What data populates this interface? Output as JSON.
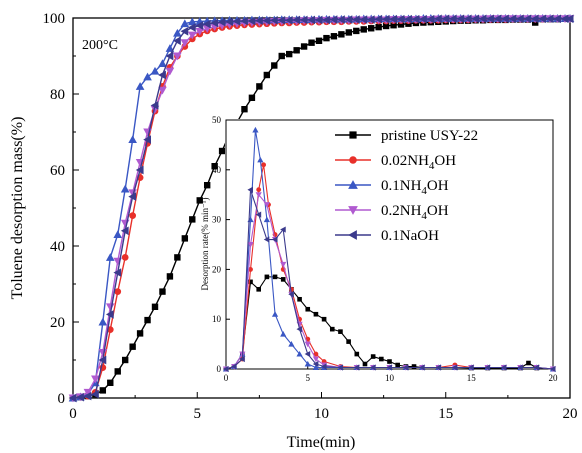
{
  "chart_data": [
    {
      "type": "line",
      "title": "",
      "annotation": "200°C",
      "xlabel": "Time(min)",
      "ylabel": "Toluene desorption mass(%)",
      "xlim": [
        0,
        20
      ],
      "ylim": [
        0,
        100
      ],
      "xticks": [
        "0",
        "5",
        "10",
        "15",
        "20"
      ],
      "yticks": [
        "0",
        "20",
        "40",
        "60",
        "80",
        "100"
      ],
      "legend_position": "inside-right",
      "series": [
        {
          "name": "pristine USY-22",
          "color": "#000000",
          "marker": "square",
          "x": [
            0,
            0.3,
            0.6,
            0.9,
            1.2,
            1.5,
            1.8,
            2.1,
            2.4,
            2.7,
            3.0,
            3.3,
            3.6,
            3.9,
            4.2,
            4.5,
            4.8,
            5.1,
            5.4,
            5.7,
            6.0,
            6.3,
            6.6,
            6.9,
            7.2,
            7.5,
            7.8,
            8.1,
            8.4,
            8.7,
            9.0,
            9.3,
            9.6,
            9.9,
            10.2,
            10.5,
            10.8,
            11.1,
            11.4,
            11.7,
            12.0,
            12.3,
            12.6,
            12.9,
            13.2,
            13.5,
            13.8,
            14.1,
            14.4,
            14.7,
            15.0,
            15.3,
            15.6,
            15.9,
            16.2,
            16.5,
            16.8,
            17.1,
            17.4,
            17.7,
            18.0,
            18.3,
            18.6,
            18.9,
            19.2,
            19.5,
            19.8,
            20.0
          ],
          "y": [
            0,
            0.2,
            0.5,
            1,
            2,
            4,
            7,
            10,
            13.5,
            17,
            20.5,
            24,
            28,
            32,
            37,
            42,
            47,
            52,
            56,
            61,
            65,
            69.5,
            72.5,
            76,
            79,
            82,
            85,
            87.5,
            90,
            90.5,
            91.5,
            92.5,
            93.5,
            94,
            94.7,
            95.2,
            95.7,
            96.2,
            96.6,
            97,
            97.3,
            97.6,
            97.9,
            98.1,
            98.3,
            98.5,
            98.7,
            98.8,
            98.9,
            99,
            99.1,
            99.2,
            99.3,
            99.3,
            99.4,
            99.4,
            99.5,
            99.5,
            99.5,
            99.6,
            99.6,
            99.6,
            98.8,
            99.7,
            99.7,
            99.7,
            99.8,
            99.8
          ]
        },
        {
          "name": "0.02NH4OH",
          "color": "#e8302a",
          "marker": "circle",
          "x": [
            0,
            0.3,
            0.6,
            0.9,
            1.2,
            1.5,
            1.8,
            2.1,
            2.4,
            2.7,
            3.0,
            3.3,
            3.6,
            3.9,
            4.2,
            4.5,
            4.8,
            5.1,
            5.4,
            5.7,
            6.0,
            6.3,
            6.6,
            6.9,
            7.2,
            7.5,
            7.8,
            8.1,
            8.4,
            8.7,
            9.0,
            9.3,
            9.6,
            9.9,
            10.2,
            10.5,
            10.8,
            11.1,
            11.4,
            11.7,
            12.0,
            12.3,
            12.6,
            12.9,
            13.2,
            13.5,
            13.8,
            14.1,
            14.4,
            14.7,
            15.0,
            15.3,
            15.6,
            15.9,
            16.2,
            16.5,
            16.8,
            17.1,
            17.4,
            17.7,
            18.0,
            18.3,
            18.6,
            18.9,
            19.2,
            19.5,
            19.8,
            20.0
          ],
          "y": [
            0,
            0.2,
            0.5,
            1.5,
            8,
            18,
            28,
            37,
            48,
            58,
            67,
            75.5,
            82,
            87,
            90,
            92.5,
            94.5,
            95.8,
            96.6,
            97.1,
            97.5,
            97.8,
            98,
            98.2,
            98.3,
            98.4,
            98.5,
            98.6,
            98.7,
            98.7,
            98.8,
            98.8,
            98.9,
            98.9,
            99,
            99,
            99,
            99.1,
            99.1,
            99.1,
            99.2,
            99.2,
            99.2,
            99.3,
            99.3,
            99.3,
            99.4,
            99.4,
            99.4,
            99.4,
            99.5,
            99.5,
            99.5,
            99.5,
            99.6,
            99.6,
            99.6,
            99.6,
            99.6,
            99.7,
            99.7,
            99.7,
            99.7,
            99.7,
            99.8,
            99.8,
            99.8,
            99.8
          ]
        },
        {
          "name": "0.1NH4OH",
          "color": "#3a57c4",
          "marker": "triangle-up",
          "x": [
            0,
            0.3,
            0.6,
            0.9,
            1.2,
            1.5,
            1.8,
            2.1,
            2.4,
            2.7,
            3.0,
            3.3,
            3.6,
            3.9,
            4.2,
            4.5,
            4.8,
            5.1,
            5.4,
            5.7,
            6.0,
            6.3,
            6.6,
            6.9,
            7.2,
            7.5,
            7.8,
            8.1,
            8.4,
            8.7,
            9.0,
            9.3,
            9.6,
            9.9,
            10.2,
            10.5,
            10.8,
            11.1,
            11.4,
            11.7,
            12.0,
            12.3,
            12.6,
            12.9,
            13.2,
            13.5,
            13.8,
            14.1,
            14.4,
            14.7,
            15.0,
            15.3,
            15.6,
            15.9,
            16.2,
            16.5,
            16.8,
            17.1,
            17.4,
            17.7,
            18.0,
            18.3,
            18.6,
            18.9,
            19.2,
            19.5,
            19.8,
            20.0
          ],
          "y": [
            0,
            0.3,
            1,
            4,
            20,
            37,
            43,
            55,
            68,
            82,
            84.5,
            86,
            88,
            92,
            96,
            98.5,
            99,
            99.1,
            99.2,
            99.3,
            99.3,
            99.4,
            99.4,
            99.4,
            99.5,
            99.5,
            99.5,
            99.5,
            99.6,
            99.6,
            99.6,
            99.6,
            99.6,
            99.7,
            99.7,
            99.7,
            99.7,
            99.7,
            99.7,
            99.8,
            99.8,
            99.8,
            99.8,
            99.8,
            99.8,
            99.8,
            99.8,
            99.9,
            99.9,
            99.9,
            99.9,
            99.9,
            99.9,
            99.9,
            99.9,
            99.9,
            99.9,
            99.9,
            99.9,
            99.9,
            99.9,
            99.9,
            99.9,
            99.9,
            99.9,
            99.9,
            99.9,
            99.9
          ]
        },
        {
          "name": "0.2NH4OH",
          "color": "#b05ad0",
          "marker": "triangle-down",
          "x": [
            0,
            0.3,
            0.6,
            0.9,
            1.2,
            1.5,
            1.8,
            2.1,
            2.4,
            2.7,
            3.0,
            3.3,
            3.6,
            3.9,
            4.2,
            4.5,
            4.8,
            5.1,
            5.4,
            5.7,
            6.0,
            6.3,
            6.6,
            6.9,
            7.2,
            7.5,
            7.8,
            8.1,
            8.4,
            8.7,
            9.0,
            9.3,
            9.6,
            9.9,
            10.2,
            10.5,
            10.8,
            11.1,
            11.4,
            11.7,
            12.0,
            12.3,
            12.6,
            12.9,
            13.2,
            13.5,
            13.8,
            14.1,
            14.4,
            14.7,
            15.0,
            15.3,
            15.6,
            15.9,
            16.2,
            16.5,
            16.8,
            17.1,
            17.4,
            17.7,
            18.0,
            18.3,
            18.6,
            18.9,
            19.2,
            19.5,
            19.8,
            20.0
          ],
          "y": [
            0,
            0.3,
            1.5,
            5,
            12,
            24,
            36,
            46,
            54,
            62,
            70,
            76,
            81,
            86,
            90,
            93.5,
            95.5,
            96.5,
            97.2,
            97.7,
            98,
            98.3,
            98.5,
            98.7,
            98.8,
            98.9,
            99,
            99.1,
            99.1,
            99.2,
            99.2,
            99.3,
            99.3,
            99.3,
            99.4,
            99.4,
            99.4,
            99.4,
            99.5,
            99.5,
            99.5,
            99.5,
            99.5,
            99.6,
            99.6,
            99.6,
            99.6,
            99.6,
            99.6,
            99.7,
            99.7,
            99.7,
            99.7,
            99.7,
            99.7,
            99.7,
            99.8,
            99.8,
            99.8,
            99.8,
            99.8,
            99.8,
            99.8,
            99.8,
            99.8,
            99.8,
            99.8,
            99.8
          ]
        },
        {
          "name": "0.1NaOH",
          "color": "#3b3a8c",
          "marker": "triangle-left",
          "x": [
            0,
            0.3,
            0.6,
            0.9,
            1.2,
            1.5,
            1.8,
            2.1,
            2.4,
            2.7,
            3.0,
            3.3,
            3.6,
            3.9,
            4.2,
            4.5,
            4.8,
            5.1,
            5.4,
            5.7,
            6.0,
            6.3,
            6.6,
            6.9,
            7.2,
            7.5,
            7.8,
            8.1,
            8.4,
            8.7,
            9.0,
            9.3,
            9.6,
            9.9,
            10.2,
            10.5,
            10.8,
            11.1,
            11.4,
            11.7,
            12.0,
            12.3,
            12.6,
            12.9,
            13.2,
            13.5,
            13.8,
            14.1,
            14.4,
            14.7,
            15.0,
            15.3,
            15.6,
            15.9,
            16.2,
            16.5,
            16.8,
            17.1,
            17.4,
            17.7,
            18.0,
            18.3,
            18.6,
            18.9,
            19.2,
            19.5,
            19.8,
            20.0
          ],
          "y": [
            0,
            0.2,
            0.5,
            1,
            10,
            22,
            33,
            44,
            53,
            60,
            68,
            77,
            85,
            90,
            94,
            96.5,
            97.5,
            98,
            98.4,
            98.7,
            98.9,
            99,
            99.1,
            99.2,
            99.2,
            99.3,
            99.3,
            99.4,
            99.4,
            99.4,
            99.5,
            99.5,
            99.5,
            99.5,
            99.5,
            99.6,
            99.6,
            99.6,
            99.6,
            99.6,
            99.6,
            99.7,
            99.7,
            99.7,
            99.7,
            99.7,
            99.7,
            99.7,
            99.7,
            99.8,
            99.8,
            99.8,
            99.8,
            99.8,
            99.8,
            99.8,
            99.8,
            99.8,
            99.8,
            99.8,
            99.8,
            99.8,
            99.8,
            99.8,
            99.8,
            99.8,
            99.8,
            99.8
          ]
        }
      ]
    },
    {
      "type": "line",
      "title": "",
      "xlabel": "",
      "ylabel": "Desorption rate(% min⁻¹)",
      "xlim": [
        0,
        20
      ],
      "ylim": [
        0,
        50
      ],
      "xticks": [
        "0",
        "5",
        "10",
        "15",
        "20"
      ],
      "yticks": [
        "0",
        "10",
        "20",
        "30",
        "40",
        "50"
      ],
      "series": [
        {
          "name": "pristine USY-22",
          "color": "#000000",
          "marker": "square",
          "x": [
            0,
            0.5,
            1.0,
            1.5,
            2.0,
            2.5,
            3.0,
            3.5,
            4.0,
            4.5,
            5.0,
            5.5,
            6.0,
            6.5,
            7.0,
            7.5,
            8.0,
            8.5,
            9.0,
            9.5,
            10.0,
            10.5,
            11.0,
            11.5,
            12.0,
            13.0,
            14.0,
            15.0,
            16.0,
            17.0,
            18.0,
            18.5,
            19.0,
            20.0
          ],
          "y": [
            0,
            0.5,
            3,
            17.5,
            16,
            18.5,
            18.5,
            18,
            16,
            14,
            12,
            11,
            10,
            8,
            7.5,
            5.5,
            3,
            1,
            2.5,
            2,
            1.5,
            0.8,
            0.5,
            0.5,
            0.3,
            0.3,
            0.3,
            0.2,
            0.2,
            0.2,
            0.2,
            1.2,
            0.2,
            0
          ]
        },
        {
          "name": "0.02NH4OH",
          "color": "#e8302a",
          "marker": "circle",
          "x": [
            0,
            0.5,
            1.0,
            1.5,
            2.0,
            2.3,
            2.6,
            3.0,
            3.5,
            4.0,
            4.5,
            5.0,
            5.5,
            6.0,
            7.0,
            8.0,
            9.0,
            10.0,
            11.0,
            12.0,
            13.0,
            14.0,
            15.0,
            16.0,
            17.0,
            18.0,
            19.0,
            20.0
          ],
          "y": [
            0,
            0.5,
            2,
            20,
            36,
            41,
            33,
            27,
            20,
            16,
            10,
            6,
            3,
            1.5,
            0.5,
            0.3,
            0.3,
            0.3,
            0.3,
            0.3,
            0.3,
            0.8,
            0.3,
            0.3,
            0.3,
            0.3,
            0.3,
            0
          ]
        },
        {
          "name": "0.1NH4OH",
          "color": "#3a57c4",
          "marker": "triangle-up",
          "x": [
            0,
            0.5,
            1.0,
            1.5,
            1.8,
            2.1,
            2.5,
            3.0,
            3.5,
            4.0,
            4.5,
            5.0,
            5.5,
            6.0,
            7.0,
            8.0,
            9.0,
            10.0,
            11.0,
            12.0,
            13.0,
            14.0,
            15.0,
            16.0,
            17.0,
            18.0,
            19.0,
            20.0
          ],
          "y": [
            0,
            0.5,
            3,
            30,
            48,
            42,
            30,
            11,
            7,
            5,
            3,
            1,
            0.3,
            0.3,
            0.3,
            0.3,
            0.3,
            0.3,
            0.3,
            0.3,
            0.3,
            0.3,
            0.3,
            0.3,
            0.3,
            0.3,
            0.3,
            0
          ]
        },
        {
          "name": "0.2NH4OH",
          "color": "#b05ad0",
          "marker": "triangle-down",
          "x": [
            0,
            0.5,
            1.0,
            1.5,
            2.0,
            2.5,
            3.0,
            3.5,
            4.0,
            4.5,
            5.0,
            5.5,
            6.0,
            7.0,
            8.0,
            9.0,
            10.0,
            11.0,
            12.0,
            13.0,
            14.0,
            15.0,
            16.0,
            17.0,
            18.0,
            19.0,
            20.0
          ],
          "y": [
            0,
            0.5,
            3,
            25,
            35,
            33,
            26,
            21,
            15,
            9,
            5,
            2,
            0.8,
            0.3,
            0.3,
            0.3,
            0.3,
            0.3,
            0.3,
            0.3,
            0.3,
            0.3,
            0.3,
            0.3,
            0.3,
            0.3,
            0
          ]
        },
        {
          "name": "0.1NaOH",
          "color": "#3b3a8c",
          "marker": "triangle-left",
          "x": [
            0,
            0.5,
            1.0,
            1.5,
            2.0,
            2.5,
            3.0,
            3.5,
            4.0,
            4.5,
            5.0,
            5.5,
            6.0,
            7.0,
            8.0,
            9.0,
            10.0,
            11.0,
            12.0,
            13.0,
            14.0,
            15.0,
            16.0,
            17.0,
            18.0,
            19.0,
            20.0
          ],
          "y": [
            0,
            0.5,
            2,
            36,
            31,
            26,
            26,
            28,
            15,
            8,
            3,
            1,
            0.5,
            0.3,
            0.3,
            0.3,
            0.3,
            0.3,
            0.3,
            0.3,
            0.3,
            0.3,
            0.3,
            0.3,
            0.3,
            0.3,
            0
          ]
        }
      ]
    }
  ]
}
